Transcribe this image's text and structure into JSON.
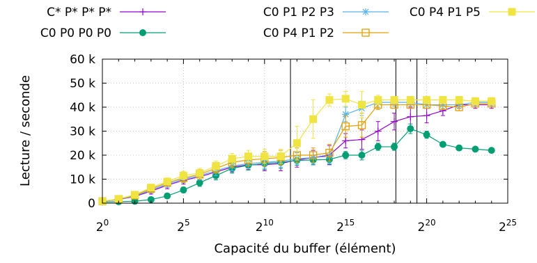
{
  "chart_data": {
    "type": "line",
    "xlabel": "Capacité du buffer (élément)",
    "ylabel": "Lecture / seconde",
    "x_scale": "log2",
    "xlim": [
      0,
      25
    ],
    "ylim": [
      0,
      60000
    ],
    "x_ticks": [
      {
        "exp": 0,
        "base": "2",
        "sup": "0"
      },
      {
        "exp": 5,
        "base": "2",
        "sup": "5"
      },
      {
        "exp": 10,
        "base": "2",
        "sup": "10"
      },
      {
        "exp": 15,
        "base": "2",
        "sup": "15"
      },
      {
        "exp": 20,
        "base": "2",
        "sup": "20"
      },
      {
        "exp": 25,
        "base": "2",
        "sup": "25"
      }
    ],
    "y_ticks": [
      {
        "value": 0,
        "label": "0"
      },
      {
        "value": 10000,
        "label": "10 k"
      },
      {
        "value": 20000,
        "label": "20 k"
      },
      {
        "value": 30000,
        "label": "30 k"
      },
      {
        "value": 40000,
        "label": "40 k"
      },
      {
        "value": 50000,
        "label": "50 k"
      },
      {
        "value": 60000,
        "label": "60 k"
      }
    ],
    "grid": true,
    "vertical_lines": [
      11.6,
      18.1,
      19.4
    ],
    "legend_position": "top",
    "x": [
      0,
      1,
      2,
      3,
      4,
      5,
      6,
      7,
      8,
      9,
      10,
      11,
      12,
      13,
      14,
      15,
      16,
      17,
      18,
      19,
      20,
      21,
      22,
      23,
      24
    ],
    "series": [
      {
        "name": "C* P* P* P*",
        "color": "#9400d3",
        "marker": "plus",
        "values": [
          800,
          1500,
          2800,
          5000,
          7500,
          9500,
          11000,
          13000,
          15000,
          16000,
          16000,
          16500,
          18000,
          19000,
          20000,
          26000,
          26500,
          30000,
          34000,
          36000,
          36500,
          38500,
          41000,
          41000,
          41000
        ],
        "errors": [
          500,
          800,
          1000,
          1200,
          1500,
          1500,
          1800,
          2000,
          2000,
          2000,
          2500,
          3000,
          3000,
          3000,
          4000,
          3000,
          4000,
          4000,
          3500,
          4000,
          3000,
          2000,
          1500,
          1500,
          1500
        ]
      },
      {
        "name": "C0 P0 P0 P0",
        "color": "#009e73",
        "marker": "circle",
        "values": [
          500,
          600,
          800,
          1500,
          3000,
          5500,
          8500,
          11500,
          14500,
          15800,
          16500,
          17000,
          17800,
          18000,
          18200,
          20000,
          20000,
          23500,
          23500,
          31000,
          28500,
          24500,
          23000,
          22500,
          22000
        ],
        "errors": [
          300,
          400,
          500,
          800,
          1000,
          1200,
          1500,
          1800,
          2000,
          2000,
          2500,
          2500,
          2000,
          2000,
          2000,
          1500,
          2000,
          1500,
          1500,
          2000,
          1500,
          1000,
          1000,
          800,
          800
        ]
      },
      {
        "name": "C0 P1 P2 P3",
        "color": "#56b4e9",
        "marker": "star",
        "values": [
          800,
          1600,
          3000,
          5500,
          8000,
          10000,
          11500,
          13500,
          15500,
          16500,
          17000,
          17500,
          18500,
          19000,
          19500,
          37000,
          39500,
          42000,
          42000,
          42000,
          41000,
          41000,
          41000,
          42000,
          42000
        ],
        "errors": [
          500,
          800,
          1000,
          1200,
          1500,
          1500,
          1800,
          2000,
          2000,
          2000,
          2500,
          2500,
          2500,
          2500,
          3000,
          3000,
          3000,
          2000,
          1500,
          1500,
          1500,
          1500,
          1500,
          1500,
          1500
        ]
      },
      {
        "name": "C0 P4 P1 P2",
        "color": "#e69f00",
        "marker": "square-open",
        "values": [
          800,
          1700,
          3200,
          6000,
          8500,
          10500,
          12000,
          14500,
          17000,
          18000,
          18500,
          19000,
          20000,
          20000,
          21000,
          32000,
          32500,
          41000,
          41000,
          41000,
          41000,
          40500,
          40000,
          41500,
          41500
        ],
        "errors": [
          500,
          800,
          1000,
          1200,
          1500,
          1800,
          2000,
          2000,
          2200,
          2500,
          3000,
          3000,
          3000,
          3000,
          3500,
          4500,
          5000,
          2000,
          1500,
          1500,
          1500,
          1500,
          1500,
          1500,
          1500
        ]
      },
      {
        "name": "C0 P4 P1 P5",
        "color": "#f0e442",
        "marker": "square-filled",
        "values": [
          800,
          1800,
          3500,
          6500,
          9000,
          11500,
          12500,
          15500,
          18500,
          19500,
          19500,
          19500,
          25000,
          35000,
          43000,
          43500,
          41000,
          43000,
          43000,
          43000,
          43000,
          43000,
          43000,
          42500,
          42500
        ],
        "errors": [
          500,
          800,
          1000,
          1200,
          1500,
          1800,
          2000,
          2000,
          2200,
          2500,
          3000,
          3000,
          7000,
          8000,
          2500,
          3000,
          5500,
          2000,
          1500,
          1500,
          1500,
          1500,
          1500,
          1500,
          1500
        ]
      }
    ]
  }
}
